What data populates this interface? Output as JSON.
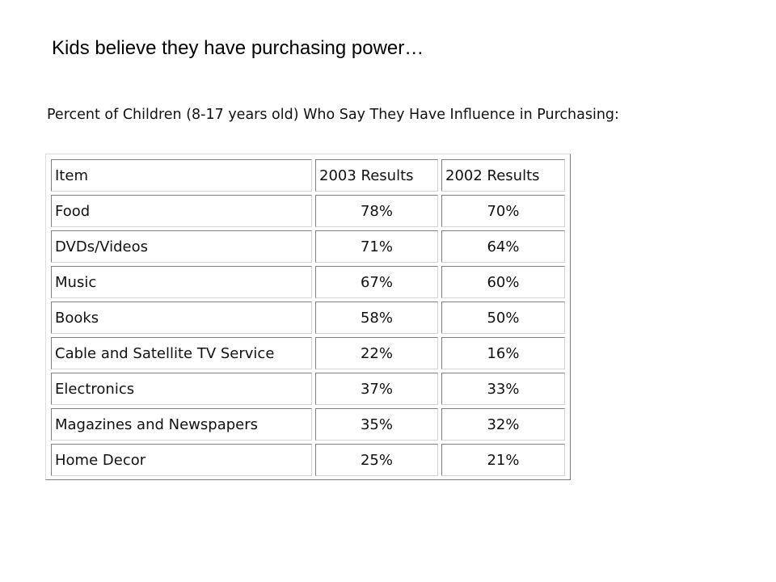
{
  "slide": {
    "title": "Kids believe they have purchasing power…"
  },
  "table": {
    "caption": "Percent of Children (8-17 years old) Who Say They Have Influence in Purchasing:",
    "headers": [
      "Item",
      "2003 Results",
      "2002 Results"
    ],
    "rows": [
      [
        "Food",
        "78%",
        "70%"
      ],
      [
        "DVDs/Videos",
        "71%",
        "64%"
      ],
      [
        "Music",
        "67%",
        "60%"
      ],
      [
        "Books",
        "58%",
        "50%"
      ],
      [
        "Cable and Satellite TV Service",
        "22%",
        "16%"
      ],
      [
        "Electronics",
        "37%",
        "33%"
      ],
      [
        "Magazines and Newspapers",
        "35%",
        "32%"
      ],
      [
        "Home Decor",
        "25%",
        "21%"
      ]
    ]
  }
}
